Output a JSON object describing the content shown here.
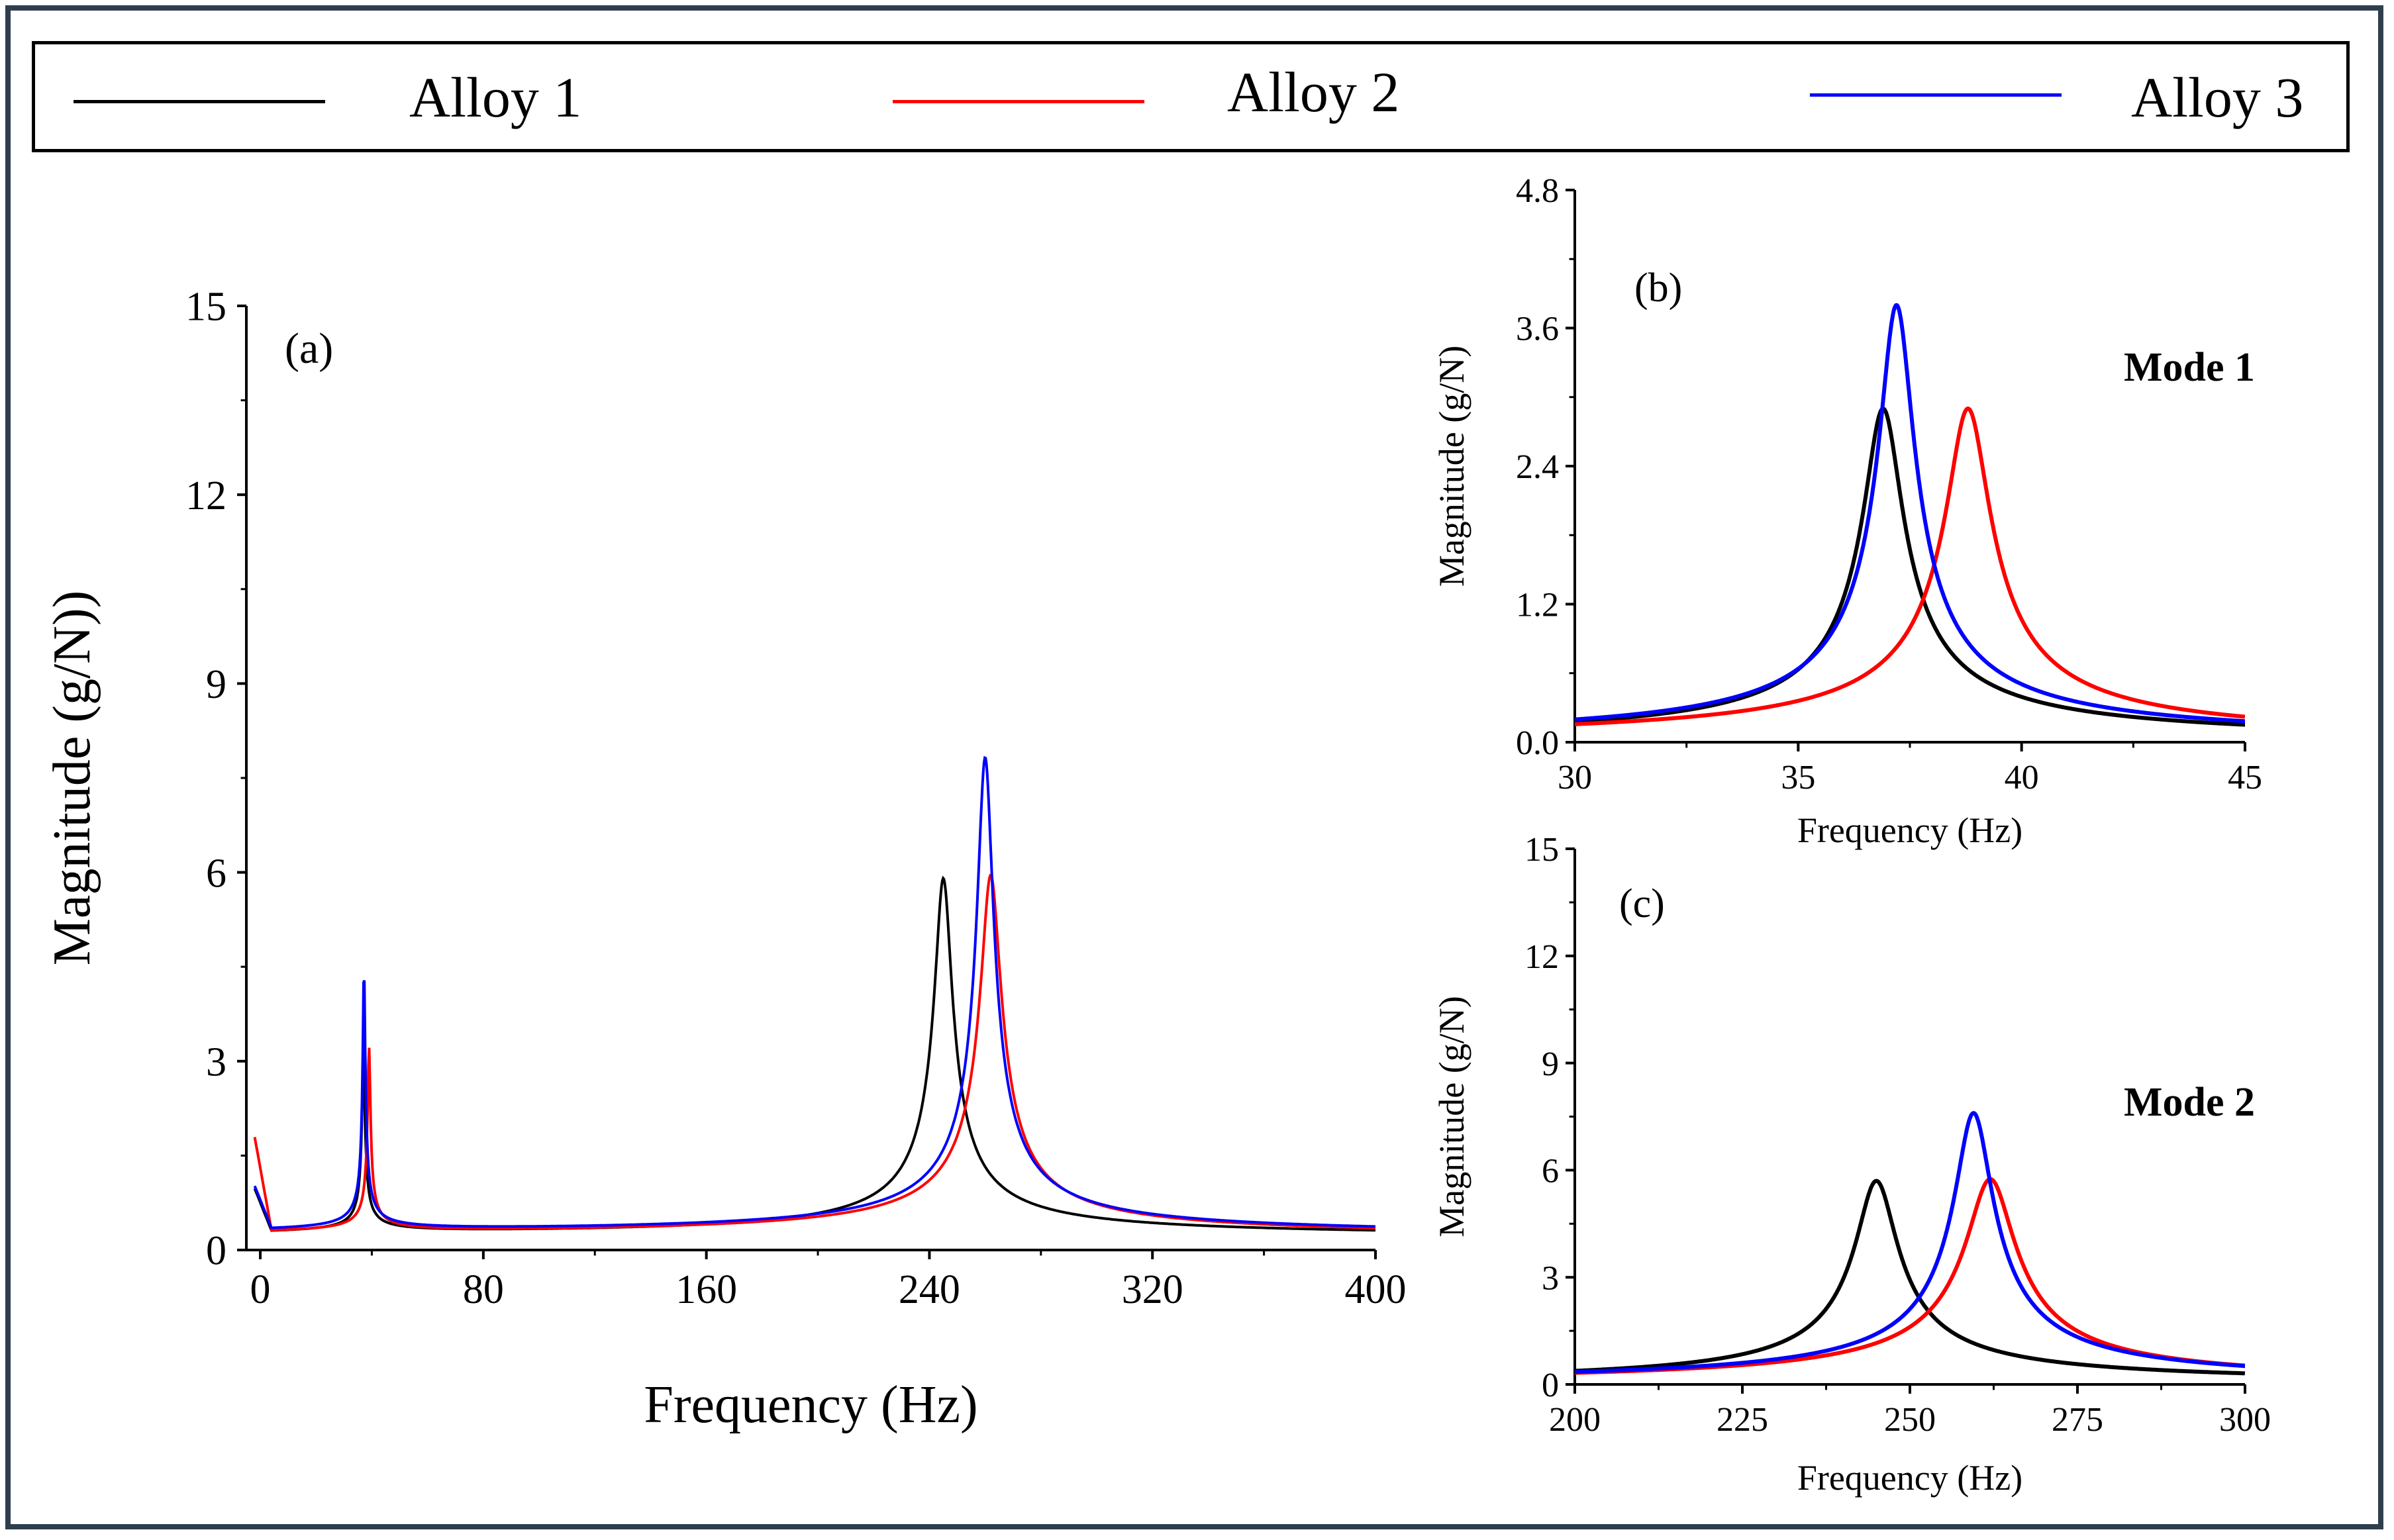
{
  "legend": {
    "entries": [
      {
        "label": "Alloy 1",
        "color": "#000000"
      },
      {
        "label": "Alloy 2",
        "color": "#ff0000"
      },
      {
        "label": "Alloy 3",
        "color": "#0000ff"
      }
    ]
  },
  "chart_data": [
    {
      "id": "a",
      "type": "line",
      "panel_label": "(a)",
      "title": "",
      "xlabel": "Frequency (Hz)",
      "ylabel": "Magnitude (g/N))",
      "xlim": [
        -5,
        400
      ],
      "ylim": [
        0,
        15
      ],
      "xticks": [
        0,
        80,
        160,
        240,
        320,
        400
      ],
      "yticks": [
        0,
        3,
        6,
        9,
        12,
        15
      ],
      "xtick_labels": [
        "0",
        "80",
        "160",
        "240",
        "320",
        "400"
      ],
      "ytick_labels": [
        "0",
        "3",
        "6",
        "9",
        "12",
        "15"
      ],
      "series": [
        {
          "name": "Alloy 1",
          "color": "#000000",
          "modes": [
            [
              37,
              2.9,
              0.9
            ],
            [
              245,
              5.7,
              6.0
            ]
          ],
          "base": 0.2
        },
        {
          "name": "Alloy 2",
          "color": "#ff0000",
          "modes": [
            [
              39,
              2.95,
              0.9
            ],
            [
              262,
              5.75,
              7.0
            ]
          ],
          "base": 0.2
        },
        {
          "name": "Alloy 3",
          "color": "#0000ff",
          "modes": [
            [
              37.2,
              4.2,
              0.8
            ],
            [
              260,
              7.6,
              5.5
            ]
          ],
          "base": 0.22
        }
      ]
    },
    {
      "id": "b",
      "type": "line",
      "panel_label": "(b)",
      "annotation": "Mode 1",
      "xlabel": "Frequency (Hz)",
      "ylabel": "Magnitude (g/N)",
      "xlim": [
        30,
        45
      ],
      "ylim": [
        0,
        4.8
      ],
      "xticks": [
        30,
        35,
        40,
        45
      ],
      "yticks": [
        0,
        1.2,
        2.4,
        3.6,
        4.8
      ],
      "xtick_labels": [
        "30",
        "35",
        "40",
        "45"
      ],
      "ytick_labels": [
        "0.0",
        "1.2",
        "2.4",
        "3.6",
        "4.8"
      ],
      "series": [
        {
          "name": "Alloy 1",
          "color": "#000000",
          "modes": [
            [
              36.9,
              2.9,
              0.85
            ]
          ],
          "base": 0.0
        },
        {
          "name": "Alloy 2",
          "color": "#ff0000",
          "modes": [
            [
              38.8,
              2.9,
              0.95
            ]
          ],
          "base": 0.0
        },
        {
          "name": "Alloy 3",
          "color": "#0000ff",
          "modes": [
            [
              37.2,
              3.8,
              0.75
            ]
          ],
          "base": 0.0
        }
      ]
    },
    {
      "id": "c",
      "type": "line",
      "panel_label": "(c)",
      "annotation": "Mode 2",
      "xlabel": "Frequency (Hz)",
      "ylabel": "Magnitude (g/N)",
      "xlim": [
        200,
        300
      ],
      "ylim": [
        0,
        15
      ],
      "xticks": [
        200,
        225,
        250,
        275,
        300
      ],
      "yticks": [
        0,
        3,
        6,
        9,
        12,
        15
      ],
      "xtick_labels": [
        "200",
        "225",
        "250",
        "275",
        "300"
      ],
      "ytick_labels": [
        "0",
        "3",
        "6",
        "9",
        "12",
        "15"
      ],
      "series": [
        {
          "name": "Alloy 1",
          "color": "#000000",
          "modes": [
            [
              245,
              5.7,
              6.0
            ]
          ],
          "base": 0.0
        },
        {
          "name": "Alloy 2",
          "color": "#ff0000",
          "modes": [
            [
              262,
              5.75,
              7.0
            ]
          ],
          "base": 0.0
        },
        {
          "name": "Alloy 3",
          "color": "#0000ff",
          "modes": [
            [
              259.5,
              7.6,
              5.5
            ]
          ],
          "base": 0.0
        }
      ]
    }
  ]
}
